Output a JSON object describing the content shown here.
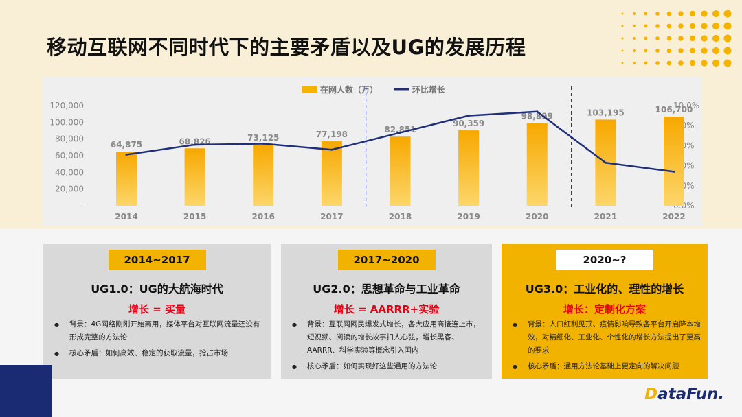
{
  "title": "移动互联网不同时代下的主要矛盾以及UG的发展历程",
  "chart_data": {
    "type": "bar+line",
    "categories": [
      "2014",
      "2015",
      "2016",
      "2017",
      "2018",
      "2019",
      "2020",
      "2021",
      "2022"
    ],
    "series": [
      {
        "name": "在网人数（万）",
        "type": "bar",
        "axis": "left",
        "values": [
          64875,
          68826,
          73125,
          77198,
          82851,
          90359,
          98899,
          103195,
          106700
        ],
        "labels": [
          "64,875",
          "68,826",
          "73,125",
          "77,198",
          "82,851",
          "90,359",
          "98,899",
          "103,195",
          "106,700"
        ],
        "color": "#f5b300"
      },
      {
        "name": "环比增长",
        "type": "line",
        "axis": "right",
        "values": [
          5.1,
          6.1,
          6.2,
          5.6,
          7.3,
          9.0,
          9.4,
          4.3,
          3.4
        ],
        "color": "#1f2f7a"
      }
    ],
    "y_left": {
      "ticks": [
        "-",
        "20,000",
        "40,000",
        "60,000",
        "80,000",
        "100,000",
        "120,000"
      ],
      "range": [
        0,
        120000
      ]
    },
    "y_right": {
      "ticks": [
        "0.0%",
        "2.0%",
        "4.0%",
        "6.0%",
        "8.0%",
        "10.0%"
      ],
      "range": [
        0,
        10
      ]
    },
    "dividers_after": [
      "2017",
      "2020"
    ],
    "legend_position": "top"
  },
  "cards": [
    {
      "badge": "2014~2017",
      "title": "UG1.0：UG的大航海时代",
      "formula": "增长 = 买量",
      "bullets": [
        "背景：4G网络刚刚开始商用，媒体平台对互联网流量还没有形成完整的方法论",
        "核心矛盾：如何高效、稳定的获取流量，抢占市场"
      ]
    },
    {
      "badge": "2017~2020",
      "title": "UG2.0：思想革命与工业革命",
      "formula": "增长 = AARRR+实验",
      "bullets": [
        "背景：互联网网民爆发式增长，各大应用商接连上市，短视频、阅读的增长故事扣人心弦，增长黑客、AARRR、科学实验等概念引入国内",
        "核心矛盾：如何实现好这些通用的方法论"
      ]
    },
    {
      "badge": "2020~?",
      "title": "UG3.0：工业化的、理性的增长",
      "formula": "增长：定制化方案",
      "bullets": [
        "背景：人口红利见顶、疫情影响导致各平台开启降本增效，对精细化、工业化、个性化的增长方法提出了更高的要求",
        "核心矛盾：通用方法论基础上更定向的解决问题"
      ]
    }
  ],
  "logo": {
    "mark": "D",
    "text": "ataFun."
  }
}
